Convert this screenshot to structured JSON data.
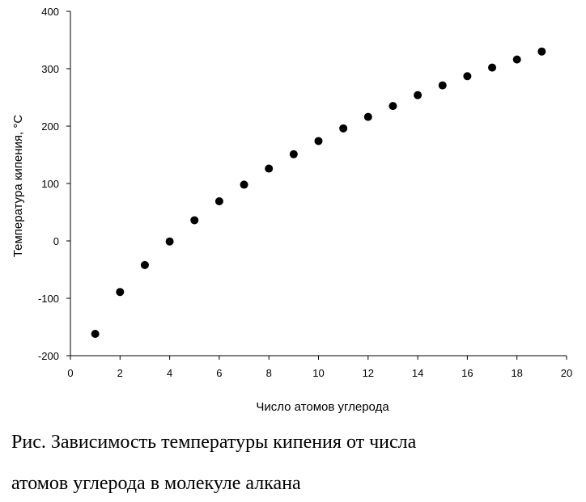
{
  "chart_data": {
    "type": "scatter",
    "xlabel": "Число атомов углерода",
    "ylabel": "Температура кипения, °С",
    "xlim": [
      0,
      20
    ],
    "ylim": [
      -200,
      400
    ],
    "xticks": [
      "0",
      "2",
      "4",
      "6",
      "8",
      "10",
      "12",
      "14",
      "16",
      "18",
      "20"
    ],
    "yticks": [
      "-200",
      "-100",
      "0",
      "100",
      "200",
      "300",
      "400"
    ],
    "grid": false,
    "marker_color": "#000000",
    "points": [
      {
        "x": 1,
        "y": -162
      },
      {
        "x": 2,
        "y": -89
      },
      {
        "x": 3,
        "y": -42
      },
      {
        "x": 4,
        "y": -1
      },
      {
        "x": 5,
        "y": 36
      },
      {
        "x": 6,
        "y": 69
      },
      {
        "x": 7,
        "y": 98
      },
      {
        "x": 8,
        "y": 126
      },
      {
        "x": 9,
        "y": 151
      },
      {
        "x": 10,
        "y": 174
      },
      {
        "x": 11,
        "y": 196
      },
      {
        "x": 12,
        "y": 216
      },
      {
        "x": 13,
        "y": 235
      },
      {
        "x": 14,
        "y": 254
      },
      {
        "x": 15,
        "y": 271
      },
      {
        "x": 16,
        "y": 287
      },
      {
        "x": 17,
        "y": 302
      },
      {
        "x": 18,
        "y": 316
      },
      {
        "x": 19,
        "y": 330
      }
    ]
  },
  "caption": {
    "line1": "Рис. Зависимость температуры кипения от числа",
    "line2": "атомов углерода в молекуле алкана"
  }
}
